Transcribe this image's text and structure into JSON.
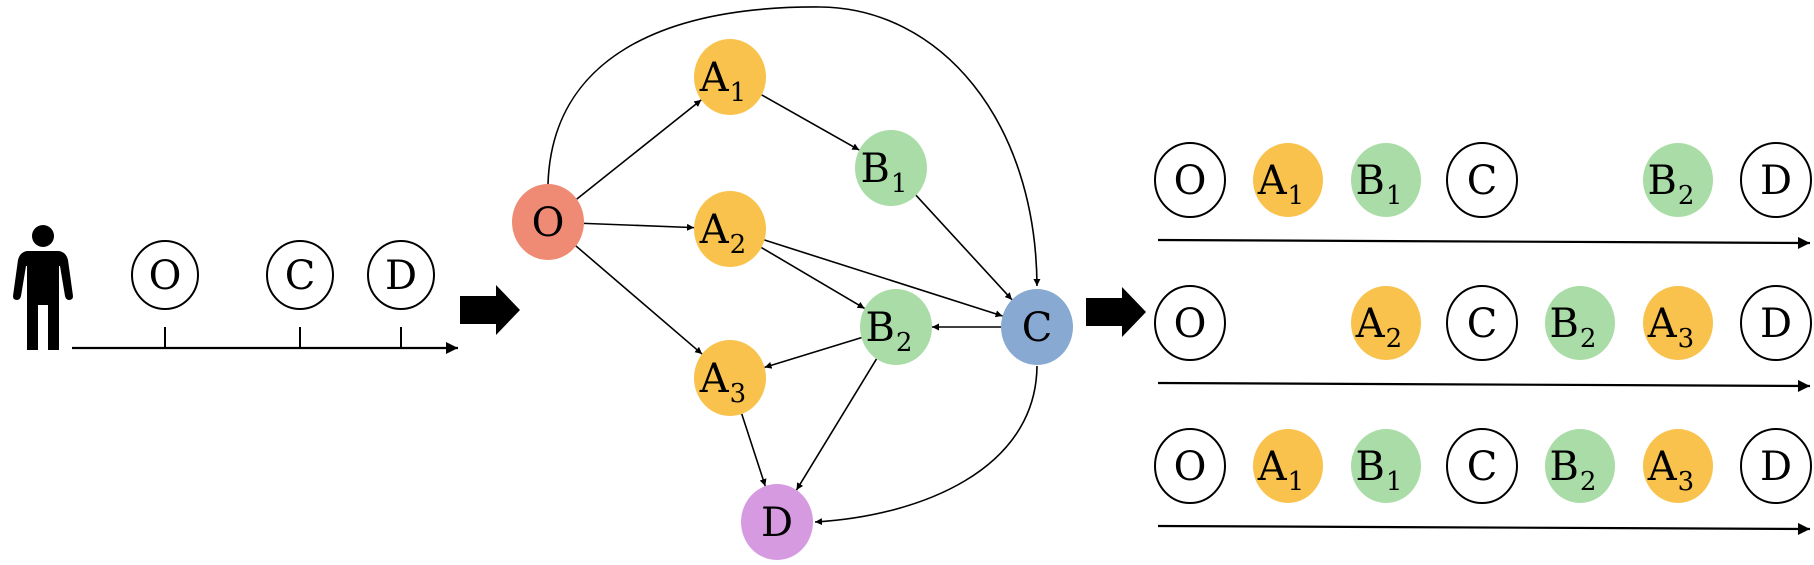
{
  "colors": {
    "origin": "#EF8A74",
    "type_a": "#F8C24C",
    "type_b": "#A9DCA6",
    "hub_c": "#88A9D2",
    "destination": "#D69AE0",
    "empty_node": "#FFFFFF",
    "stroke": "#000000"
  },
  "left_panel": {
    "person_icon": "person-icon",
    "timeline_stops": [
      {
        "main": "O"
      },
      {
        "main": "C"
      },
      {
        "main": "D"
      }
    ]
  },
  "arrows": [
    "block-arrow-right",
    "block-arrow-right"
  ],
  "graph": {
    "nodes": [
      {
        "id": "O",
        "main": "O",
        "sub": "",
        "kind": "origin"
      },
      {
        "id": "A1",
        "main": "A",
        "sub": "1",
        "kind": "type_a"
      },
      {
        "id": "A2",
        "main": "A",
        "sub": "2",
        "kind": "type_a"
      },
      {
        "id": "A3",
        "main": "A",
        "sub": "3",
        "kind": "type_a"
      },
      {
        "id": "B1",
        "main": "B",
        "sub": "1",
        "kind": "type_b"
      },
      {
        "id": "B2",
        "main": "B",
        "sub": "2",
        "kind": "type_b"
      },
      {
        "id": "C",
        "main": "C",
        "sub": "",
        "kind": "hub_c"
      },
      {
        "id": "D",
        "main": "D",
        "sub": "",
        "kind": "destination"
      }
    ],
    "edges": [
      {
        "from": "O",
        "to": "A1"
      },
      {
        "from": "O",
        "to": "A2"
      },
      {
        "from": "O",
        "to": "A3"
      },
      {
        "from": "O",
        "to": "C",
        "curved": true
      },
      {
        "from": "A1",
        "to": "B1"
      },
      {
        "from": "A2",
        "to": "C"
      },
      {
        "from": "A2",
        "to": "B2"
      },
      {
        "from": "B1",
        "to": "C"
      },
      {
        "from": "C",
        "to": "B2"
      },
      {
        "from": "B2",
        "to": "A3"
      },
      {
        "from": "B2",
        "to": "D"
      },
      {
        "from": "A3",
        "to": "D"
      },
      {
        "from": "C",
        "to": "D",
        "curved": true
      }
    ]
  },
  "sequences": [
    [
      {
        "main": "O",
        "sub": "",
        "kind": "empty_node"
      },
      {
        "main": "A",
        "sub": "1",
        "kind": "type_a"
      },
      {
        "main": "B",
        "sub": "1",
        "kind": "type_b"
      },
      {
        "main": "C",
        "sub": "",
        "kind": "empty_node"
      },
      {
        "main": "B",
        "sub": "2",
        "kind": "type_b"
      },
      {
        "main": "D",
        "sub": "",
        "kind": "empty_node"
      }
    ],
    [
      {
        "main": "O",
        "sub": "",
        "kind": "empty_node"
      },
      {
        "main": "A",
        "sub": "2",
        "kind": "type_a"
      },
      {
        "main": "C",
        "sub": "",
        "kind": "empty_node"
      },
      {
        "main": "B",
        "sub": "2",
        "kind": "type_b"
      },
      {
        "main": "A",
        "sub": "3",
        "kind": "type_a"
      },
      {
        "main": "D",
        "sub": "",
        "kind": "empty_node"
      }
    ],
    [
      {
        "main": "O",
        "sub": "",
        "kind": "empty_node"
      },
      {
        "main": "A",
        "sub": "1",
        "kind": "type_a"
      },
      {
        "main": "B",
        "sub": "1",
        "kind": "type_b"
      },
      {
        "main": "C",
        "sub": "",
        "kind": "empty_node"
      },
      {
        "main": "B",
        "sub": "2",
        "kind": "type_b"
      },
      {
        "main": "A",
        "sub": "3",
        "kind": "type_a"
      },
      {
        "main": "D",
        "sub": "",
        "kind": "empty_node"
      }
    ]
  ]
}
